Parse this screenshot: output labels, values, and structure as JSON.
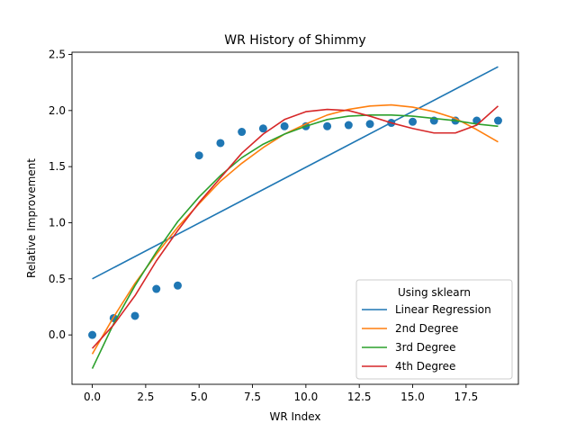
{
  "chart_data": {
    "type": "scatter",
    "title": "WR History of Shimmy",
    "xlabel": "WR Index",
    "ylabel": "Relative Improvement",
    "xlim": [
      -0.95,
      19.95
    ],
    "ylim": [
      -0.44,
      2.52
    ],
    "x_ticks": [
      0.0,
      2.5,
      5.0,
      7.5,
      10.0,
      12.5,
      15.0,
      17.5
    ],
    "x_tick_labels": [
      "0.0",
      "2.5",
      "5.0",
      "7.5",
      "10.0",
      "12.5",
      "15.0",
      "17.5"
    ],
    "y_ticks": [
      0.0,
      0.5,
      1.0,
      1.5,
      2.0,
      2.5
    ],
    "y_tick_labels": [
      "0.0",
      "0.5",
      "1.0",
      "1.5",
      "2.0",
      "2.5"
    ],
    "grid": false,
    "legend": {
      "title": "Using sklearn",
      "placement": "lower-right"
    },
    "scatter": {
      "color": "#1f77b4",
      "x": [
        0,
        1,
        2,
        3,
        4,
        5,
        6,
        7,
        8,
        9,
        10,
        11,
        12,
        13,
        14,
        15,
        16,
        17,
        18,
        19
      ],
      "y": [
        0.0,
        0.15,
        0.17,
        0.41,
        0.44,
        1.6,
        1.71,
        1.81,
        1.84,
        1.86,
        1.86,
        1.86,
        1.87,
        1.88,
        1.89,
        1.9,
        1.91,
        1.91,
        1.91,
        1.91
      ]
    },
    "series": [
      {
        "name": "Linear Regression",
        "color": "#1f77b4",
        "x": [
          0,
          19
        ],
        "y": [
          0.5,
          2.39
        ]
      },
      {
        "name": "2nd Degree",
        "color": "#ff7f0e",
        "x": [
          0,
          1,
          2,
          3,
          4,
          5,
          6,
          7,
          8,
          9,
          10,
          11,
          12,
          13,
          14,
          15,
          16,
          17,
          18,
          19
        ],
        "y": [
          -0.17,
          0.16,
          0.46,
          0.72,
          0.96,
          1.17,
          1.37,
          1.53,
          1.67,
          1.79,
          1.88,
          1.96,
          2.01,
          2.04,
          2.05,
          2.03,
          1.99,
          1.93,
          1.83,
          1.72
        ]
      },
      {
        "name": "3rd Degree",
        "color": "#2ca02c",
        "x": [
          0,
          1,
          2,
          3,
          4,
          5,
          6,
          7,
          8,
          9,
          10,
          11,
          12,
          13,
          14,
          15,
          16,
          17,
          18,
          19
        ],
        "y": [
          -0.3,
          0.1,
          0.44,
          0.74,
          1.01,
          1.23,
          1.42,
          1.58,
          1.7,
          1.79,
          1.86,
          1.92,
          1.95,
          1.96,
          1.96,
          1.95,
          1.93,
          1.91,
          1.88,
          1.86
        ]
      },
      {
        "name": "4th Degree",
        "color": "#d62728",
        "x": [
          0,
          1,
          2,
          3,
          4,
          5,
          6,
          7,
          8,
          9,
          10,
          11,
          12,
          13,
          14,
          15,
          16,
          17,
          18,
          19
        ],
        "y": [
          -0.12,
          0.09,
          0.35,
          0.66,
          0.93,
          1.18,
          1.4,
          1.62,
          1.79,
          1.92,
          1.99,
          2.01,
          2.0,
          1.95,
          1.89,
          1.84,
          1.8,
          1.8,
          1.87,
          2.04
        ]
      }
    ]
  }
}
